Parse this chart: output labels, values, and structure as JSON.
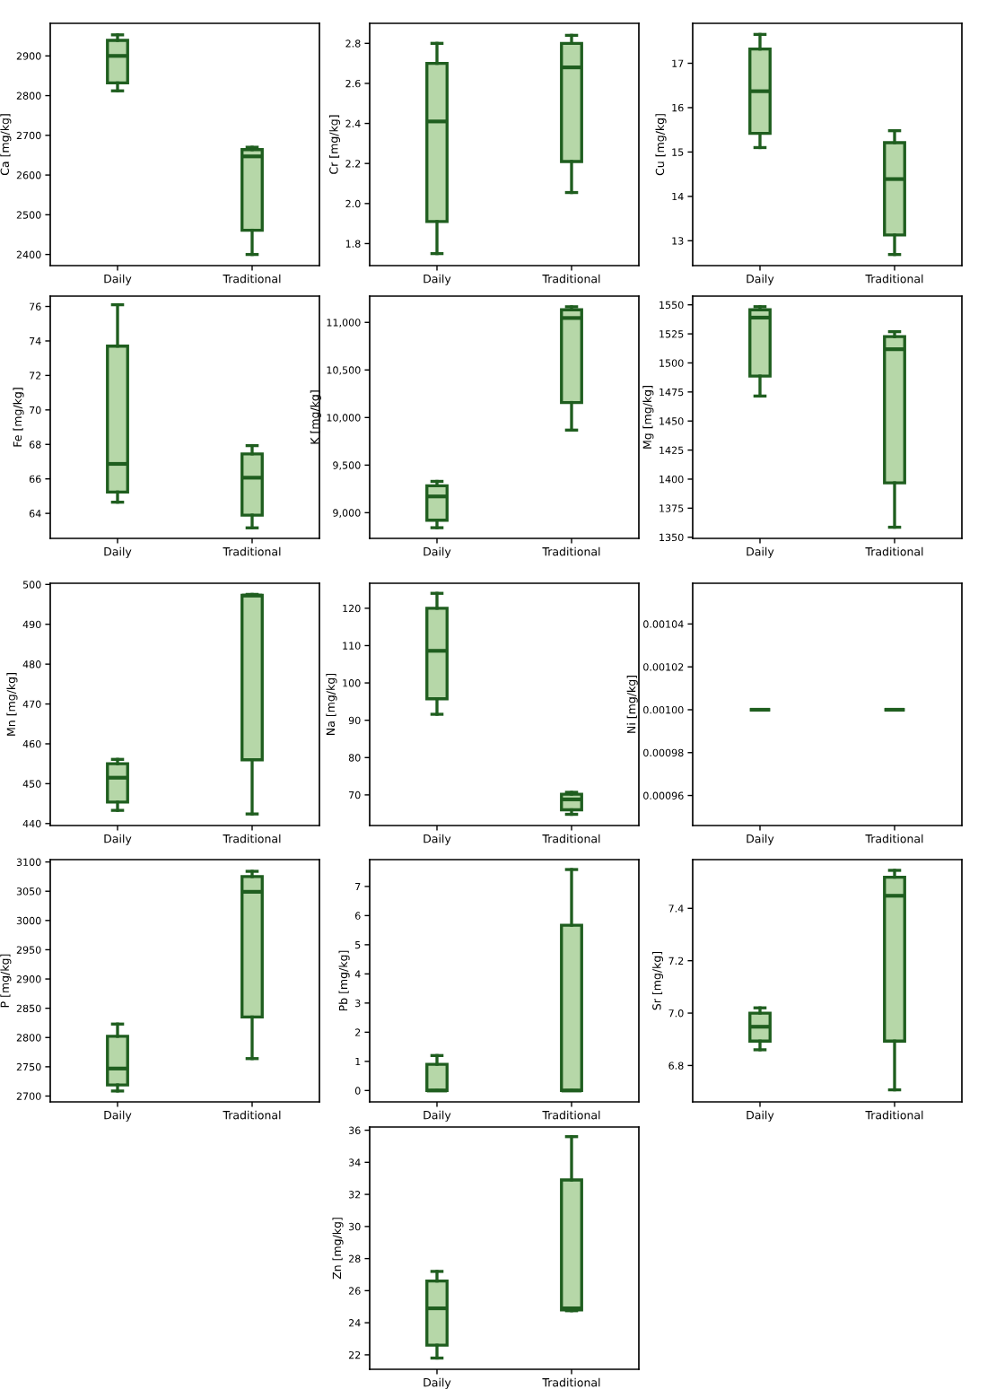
{
  "chart_data": [
    {
      "type": "box",
      "categories": [
        "Daily",
        "Traditional"
      ],
      "ylabel": "Ca [mg/kg]",
      "ylim": [
        2372,
        2982
      ],
      "yticks": [
        2400,
        2500,
        2600,
        2700,
        2800,
        2900
      ],
      "series": [
        {
          "color": "#b6d7a8",
          "boxes": [
            {
              "low": 2812,
              "q1": 2832,
              "median": 2900,
              "q3": 2939,
              "high": 2953
            },
            {
              "low": 2400,
              "q1": 2461,
              "median": 2647,
              "q3": 2664,
              "high": 2670
            }
          ]
        }
      ]
    },
    {
      "type": "box",
      "categories": [
        "Daily",
        "Traditional"
      ],
      "ylabel": "Cr [mg/kg]",
      "ylim": [
        1.69,
        2.9
      ],
      "yticks": [
        1.8,
        {
          "value": 2,
          "label": "2.0"
        },
        2.2,
        2.4,
        2.6,
        2.8
      ],
      "series": [
        {
          "color": "#b6d7a8",
          "boxes": [
            {
              "low": 1.75,
              "q1": 1.91,
              "median": 2.41,
              "q3": 2.7,
              "high": 2.8
            },
            {
              "low": 2.055,
              "q1": 2.21,
              "median": 2.68,
              "q3": 2.8,
              "high": 2.84
            }
          ]
        }
      ]
    },
    {
      "type": "box",
      "categories": [
        "Daily",
        "Traditional"
      ],
      "ylabel": "Cu [mg/kg]",
      "ylim": [
        12.44,
        17.9
      ],
      "yticks": [
        13,
        14,
        15,
        16,
        17
      ],
      "series": [
        {
          "color": "#b6d7a8",
          "boxes": [
            {
              "low": 15.1,
              "q1": 15.42,
              "median": 16.37,
              "q3": 17.32,
              "high": 17.65
            },
            {
              "low": 12.69,
              "q1": 13.13,
              "median": 14.39,
              "q3": 15.21,
              "high": 15.48
            }
          ]
        }
      ]
    },
    {
      "type": "box",
      "categories": [
        "Daily",
        "Traditional"
      ],
      "ylabel": "Fe [mg/kg]",
      "ylim": [
        62.55,
        76.6
      ],
      "yticks": [
        64,
        66,
        68,
        70,
        72,
        74,
        76
      ],
      "series": [
        {
          "color": "#b6d7a8",
          "boxes": [
            {
              "low": 64.65,
              "q1": 65.24,
              "median": 66.87,
              "q3": 73.7,
              "high": 76.1
            },
            {
              "low": 63.16,
              "q1": 63.9,
              "median": 66.07,
              "q3": 67.45,
              "high": 67.93
            }
          ]
        }
      ]
    },
    {
      "type": "box",
      "categories": [
        "Daily",
        "Traditional"
      ],
      "ylabel": "K [mg/kg]",
      "ylim": [
        8730,
        11276
      ],
      "yticks": [
        {
          "value": 9000,
          "label": "9,000"
        },
        {
          "value": 9500,
          "label": "9,500"
        },
        {
          "value": 10000,
          "label": "10,000"
        },
        {
          "value": 10500,
          "label": "10,500"
        },
        {
          "value": 11000,
          "label": "11,000"
        }
      ],
      "series": [
        {
          "color": "#b6d7a8",
          "boxes": [
            {
              "low": 8842,
              "q1": 8921,
              "median": 9171,
              "q3": 9283,
              "high": 9329
            },
            {
              "low": 9868,
              "q1": 10158,
              "median": 11046,
              "q3": 11132,
              "high": 11164
            }
          ]
        }
      ]
    },
    {
      "type": "box",
      "categories": [
        "Daily",
        "Traditional"
      ],
      "ylabel": "Mg [mg/kg]",
      "ylim": [
        1349,
        1557.5
      ],
      "yticks": [
        1350,
        1375,
        1400,
        1425,
        1450,
        1475,
        1500,
        1525,
        1550
      ],
      "series": [
        {
          "color": "#b6d7a8",
          "boxes": [
            {
              "low": 1471.5,
              "q1": 1488.7,
              "median": 1539,
              "q3": 1545.7,
              "high": 1548.4
            },
            {
              "low": 1358.6,
              "q1": 1396.8,
              "median": 1511.8,
              "q3": 1522.6,
              "high": 1526.9
            }
          ]
        }
      ]
    },
    {
      "type": "box",
      "categories": [
        "Daily",
        "Traditional"
      ],
      "ylabel": "Mn [mg/kg]",
      "ylim": [
        439.5,
        500.3
      ],
      "yticks": [
        440,
        450,
        460,
        470,
        480,
        490,
        500
      ],
      "series": [
        {
          "color": "#b6d7a8",
          "boxes": [
            {
              "low": 443.3,
              "q1": 445.4,
              "median": 451.5,
              "q3": 455,
              "high": 456.1
            },
            {
              "low": 442.4,
              "q1": 456,
              "median": 497.2,
              "q3": 497.3,
              "high": 497.5
            }
          ]
        }
      ]
    },
    {
      "type": "box",
      "categories": [
        "Daily",
        "Traditional"
      ],
      "ylabel": "Na [mg/kg]",
      "ylim": [
        61.8,
        126.7
      ],
      "yticks": [
        70,
        80,
        90,
        100,
        110,
        120
      ],
      "series": [
        {
          "color": "#b6d7a8",
          "boxes": [
            {
              "low": 91.6,
              "q1": 95.75,
              "median": 108.6,
              "q3": 120,
              "high": 124
            },
            {
              "low": 64.8,
              "q1": 66,
              "median": 68.8,
              "q3": 70.2,
              "high": 70.7
            }
          ]
        }
      ]
    },
    {
      "type": "box",
      "categories": [
        "Daily",
        "Traditional"
      ],
      "ylabel": "Ni [mg/kg]",
      "ylim": [
        0.000946,
        0.001059
      ],
      "yticks": [
        {
          "value": 0.00096,
          "label": "0.00096"
        },
        {
          "value": 0.00098,
          "label": "0.00098"
        },
        {
          "value": 0.001,
          "label": "0.00100"
        },
        {
          "value": 0.00102,
          "label": "0.00102"
        },
        {
          "value": 0.00104,
          "label": "0.00104"
        }
      ],
      "series": [
        {
          "boxes": [
            {
              "low": 0.001,
              "q1": 0.001,
              "median": 0.001,
              "q3": 0.001,
              "high": 0.001
            },
            {
              "low": 0.001,
              "q1": 0.001,
              "median": 0.001,
              "q3": 0.001,
              "high": 0.001
            }
          ]
        }
      ]
    },
    {
      "type": "box",
      "categories": [
        "Daily",
        "Traditional"
      ],
      "ylabel": "P [mg/kg]",
      "ylim": [
        2690,
        3104
      ],
      "yticks": [
        2700,
        2750,
        2800,
        2850,
        2900,
        2950,
        3000,
        3050,
        3100
      ],
      "series": [
        {
          "color": "#b6d7a8",
          "boxes": [
            {
              "low": 2708.6,
              "q1": 2719,
              "median": 2747,
              "q3": 2802,
              "high": 2823
            },
            {
              "low": 2764,
              "q1": 2835,
              "median": 3049,
              "q3": 3075,
              "high": 3084
            }
          ]
        }
      ]
    },
    {
      "type": "box",
      "categories": [
        "Daily",
        "Traditional"
      ],
      "ylabel": "Pb [mg/kg]",
      "ylim": [
        -0.39,
        7.92
      ],
      "yticks": [
        0,
        1,
        2,
        3,
        4,
        5,
        6,
        7
      ],
      "series": [
        {
          "color": "#b6d7a8",
          "boxes": [
            {
              "low": 0,
              "q1": 0,
              "median": 0,
              "q3": 0.9,
              "high": 1.2
            },
            {
              "low": 0,
              "q1": 0,
              "median": 0,
              "q3": 5.67,
              "high": 7.58
            }
          ]
        }
      ]
    },
    {
      "type": "box",
      "categories": [
        "Daily",
        "Traditional"
      ],
      "ylabel": "Sr [mg/kg]",
      "ylim": [
        6.661,
        7.586
      ],
      "yticks": [
        6.8,
        {
          "value": 7,
          "label": "7.0"
        },
        7.2,
        7.4
      ],
      "series": [
        {
          "color": "#b6d7a8",
          "boxes": [
            {
              "low": 6.86,
              "q1": 6.893,
              "median": 6.948,
              "q3": 7.0,
              "high": 7.02
            },
            {
              "low": 6.707,
              "q1": 6.893,
              "median": 7.448,
              "q3": 7.519,
              "high": 7.545
            }
          ]
        }
      ]
    },
    {
      "type": "box",
      "categories": [
        "Daily",
        "Traditional"
      ],
      "ylabel": "Zn [mg/kg]",
      "ylim": [
        21.1,
        36.2
      ],
      "yticks": [
        22,
        24,
        26,
        28,
        30,
        32,
        34,
        36
      ],
      "series": [
        {
          "color": "#b6d7a8",
          "boxes": [
            {
              "low": 21.8,
              "q1": 22.6,
              "median": 24.9,
              "q3": 26.6,
              "high": 27.2
            },
            {
              "low": 24.75,
              "q1": 24.8,
              "median": 24.9,
              "q3": 32.9,
              "high": 35.6
            }
          ]
        }
      ]
    }
  ]
}
